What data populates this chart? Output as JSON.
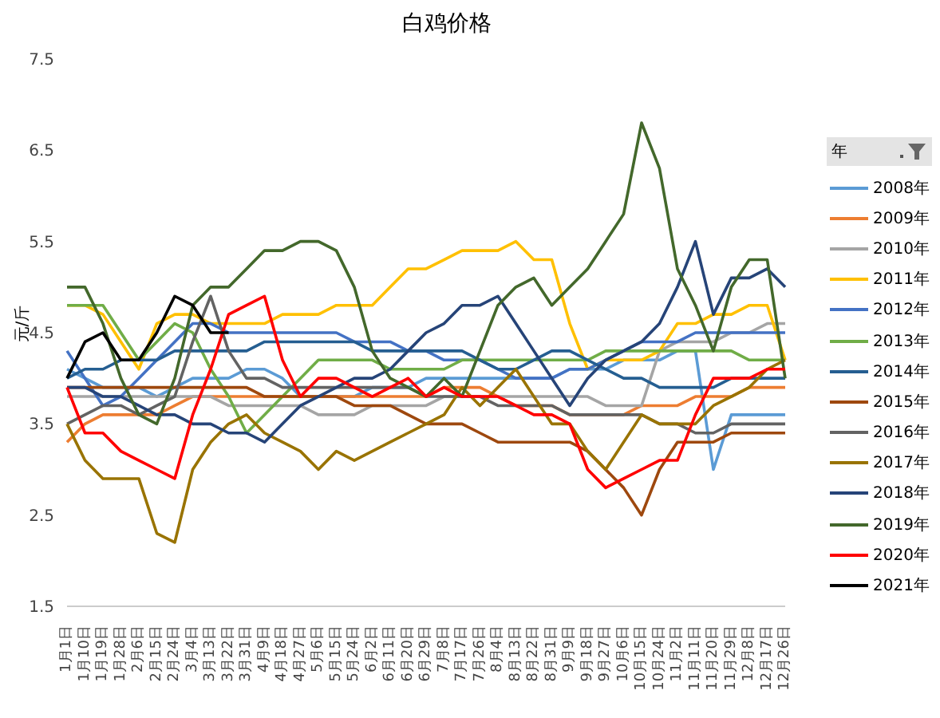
{
  "chart_data": {
    "type": "line",
    "title": "白鸡价格",
    "ylabel": "元/斤",
    "legend_title": "年",
    "legend": "right",
    "grid": false,
    "marker": "none",
    "line_style": "solid",
    "categories": [
      "1月1日",
      "1月10日",
      "1月19日",
      "1月28日",
      "2月6日",
      "2月15日",
      "2月24日",
      "3月4日",
      "3月13日",
      "3月22日",
      "3月31日",
      "4月9日",
      "4月18日",
      "4月27日",
      "5月6日",
      "5月15日",
      "5月24日",
      "6月2日",
      "6月11日",
      "6月20日",
      "6月29日",
      "7月8日",
      "7月17日",
      "7月26日",
      "8月4日",
      "8月13日",
      "8月22日",
      "8月31日",
      "9月9日",
      "9月18日",
      "9月27日",
      "10月6日",
      "10月15日",
      "10月24日",
      "11月2日",
      "11月11日",
      "11月20日",
      "11月29日",
      "12月8日",
      "12月17日",
      "12月26日"
    ],
    "ylim": [
      1.5,
      7.5
    ],
    "yticks": [
      1.5,
      2.5,
      3.5,
      4.5,
      5.5,
      6.5,
      7.5
    ],
    "series": [
      {
        "name": "2008年",
        "color": "#5b9bd5",
        "values": [
          4.1,
          4.0,
          3.9,
          3.9,
          3.9,
          3.8,
          3.9,
          4.0,
          4.0,
          4.0,
          4.1,
          4.1,
          4.0,
          3.8,
          3.8,
          3.8,
          3.8,
          3.9,
          3.9,
          3.9,
          4.0,
          4.0,
          4.0,
          4.0,
          4.0,
          4.0,
          4.0,
          4.0,
          4.1,
          4.1,
          4.1,
          4.2,
          4.2,
          4.2,
          4.3,
          4.3,
          3.0,
          3.6,
          3.6,
          3.6,
          3.6
        ]
      },
      {
        "name": "2009年",
        "color": "#ed7d31",
        "values": [
          3.3,
          3.5,
          3.6,
          3.6,
          3.6,
          3.6,
          3.7,
          3.8,
          3.8,
          3.8,
          3.8,
          3.8,
          3.8,
          3.8,
          3.8,
          3.8,
          3.8,
          3.8,
          3.8,
          3.8,
          3.8,
          3.9,
          3.9,
          3.9,
          3.8,
          3.7,
          3.7,
          3.7,
          3.6,
          3.6,
          3.6,
          3.6,
          3.7,
          3.7,
          3.7,
          3.8,
          3.8,
          3.8,
          3.9,
          3.9,
          3.9
        ]
      },
      {
        "name": "2010年",
        "color": "#a5a5a5",
        "values": [
          3.8,
          3.8,
          3.8,
          3.8,
          3.8,
          3.8,
          3.8,
          3.8,
          3.8,
          3.7,
          3.7,
          3.7,
          3.7,
          3.7,
          3.6,
          3.6,
          3.6,
          3.7,
          3.7,
          3.7,
          3.7,
          3.8,
          3.8,
          3.8,
          3.8,
          3.8,
          3.8,
          3.8,
          3.8,
          3.8,
          3.7,
          3.7,
          3.7,
          4.3,
          4.4,
          4.4,
          4.4,
          4.5,
          4.5,
          4.6,
          4.6
        ]
      },
      {
        "name": "2011年",
        "color": "#ffc000",
        "values": [
          4.8,
          4.8,
          4.7,
          4.4,
          4.1,
          4.6,
          4.7,
          4.7,
          4.6,
          4.6,
          4.6,
          4.6,
          4.7,
          4.7,
          4.7,
          4.8,
          4.8,
          4.8,
          5.0,
          5.2,
          5.2,
          5.3,
          5.4,
          5.4,
          5.4,
          5.5,
          5.3,
          5.3,
          4.6,
          4.1,
          4.2,
          4.2,
          4.2,
          4.3,
          4.6,
          4.6,
          4.7,
          4.7,
          4.8,
          4.8,
          4.2
        ]
      },
      {
        "name": "2012年",
        "color": "#4472c4",
        "values": [
          4.3,
          4.0,
          3.7,
          3.8,
          4.0,
          4.2,
          4.4,
          4.6,
          4.6,
          4.5,
          4.5,
          4.5,
          4.5,
          4.5,
          4.5,
          4.5,
          4.4,
          4.4,
          4.4,
          4.3,
          4.3,
          4.2,
          4.2,
          4.2,
          4.1,
          4.0,
          4.0,
          4.0,
          4.1,
          4.1,
          4.2,
          4.3,
          4.4,
          4.4,
          4.4,
          4.5,
          4.5,
          4.5,
          4.5,
          4.5,
          4.5
        ]
      },
      {
        "name": "2013年",
        "color": "#70ad47",
        "values": [
          4.8,
          4.8,
          4.8,
          4.5,
          4.2,
          4.4,
          4.6,
          4.5,
          4.1,
          3.8,
          3.4,
          3.6,
          3.8,
          4.0,
          4.2,
          4.2,
          4.2,
          4.2,
          4.1,
          4.1,
          4.1,
          4.1,
          4.2,
          4.2,
          4.2,
          4.2,
          4.2,
          4.2,
          4.2,
          4.2,
          4.3,
          4.3,
          4.3,
          4.3,
          4.3,
          4.3,
          4.3,
          4.3,
          4.2,
          4.2,
          4.2
        ]
      },
      {
        "name": "2014年",
        "color": "#255e91",
        "values": [
          4.0,
          4.1,
          4.1,
          4.2,
          4.2,
          4.2,
          4.3,
          4.3,
          4.3,
          4.3,
          4.3,
          4.4,
          4.4,
          4.4,
          4.4,
          4.4,
          4.4,
          4.3,
          4.3,
          4.3,
          4.3,
          4.3,
          4.3,
          4.2,
          4.1,
          4.1,
          4.2,
          4.3,
          4.3,
          4.2,
          4.1,
          4.0,
          4.0,
          3.9,
          3.9,
          3.9,
          3.9,
          4.0,
          4.0,
          4.0,
          4.0
        ]
      },
      {
        "name": "2015年",
        "color": "#9e480e",
        "values": [
          3.9,
          3.9,
          3.9,
          3.9,
          3.9,
          3.9,
          3.9,
          3.9,
          3.9,
          3.9,
          3.9,
          3.8,
          3.8,
          3.8,
          3.8,
          3.8,
          3.7,
          3.7,
          3.7,
          3.6,
          3.5,
          3.5,
          3.5,
          3.4,
          3.3,
          3.3,
          3.3,
          3.3,
          3.3,
          3.2,
          3.0,
          2.8,
          2.5,
          3.0,
          3.3,
          3.3,
          3.3,
          3.4,
          3.4,
          3.4,
          3.4
        ]
      },
      {
        "name": "2016年",
        "color": "#636363",
        "values": [
          3.5,
          3.6,
          3.7,
          3.7,
          3.6,
          3.7,
          3.8,
          4.4,
          4.9,
          4.3,
          4.0,
          4.0,
          3.9,
          3.9,
          3.9,
          3.9,
          3.9,
          3.9,
          3.9,
          3.9,
          3.8,
          3.8,
          3.8,
          3.8,
          3.7,
          3.7,
          3.7,
          3.7,
          3.6,
          3.6,
          3.6,
          3.6,
          3.6,
          3.5,
          3.5,
          3.4,
          3.4,
          3.5,
          3.5,
          3.5,
          3.5
        ]
      },
      {
        "name": "2017年",
        "color": "#997300",
        "values": [
          3.5,
          3.1,
          2.9,
          2.9,
          2.9,
          2.3,
          2.2,
          3.0,
          3.3,
          3.5,
          3.6,
          3.4,
          3.3,
          3.2,
          3.0,
          3.2,
          3.1,
          3.2,
          3.3,
          3.4,
          3.5,
          3.6,
          3.9,
          3.7,
          3.9,
          4.1,
          3.8,
          3.5,
          3.5,
          3.2,
          3.0,
          3.3,
          3.6,
          3.5,
          3.5,
          3.5,
          3.7,
          3.8,
          3.9,
          4.1,
          4.2
        ]
      },
      {
        "name": "2018年",
        "color": "#264478",
        "values": [
          3.9,
          3.9,
          3.8,
          3.8,
          3.7,
          3.6,
          3.6,
          3.5,
          3.5,
          3.4,
          3.4,
          3.3,
          3.5,
          3.7,
          3.8,
          3.9,
          4.0,
          4.0,
          4.1,
          4.3,
          4.5,
          4.6,
          4.8,
          4.8,
          4.9,
          4.6,
          4.3,
          4.0,
          3.7,
          4.0,
          4.2,
          4.3,
          4.4,
          4.6,
          5.0,
          5.5,
          4.7,
          5.1,
          5.1,
          5.2,
          5.0
        ]
      },
      {
        "name": "2019年",
        "color": "#43682b",
        "values": [
          5.0,
          5.0,
          4.6,
          4.0,
          3.6,
          3.5,
          4.0,
          4.8,
          5.0,
          5.0,
          5.2,
          5.4,
          5.4,
          5.5,
          5.5,
          5.4,
          5.0,
          4.3,
          4.0,
          3.9,
          3.8,
          4.0,
          3.8,
          4.3,
          4.8,
          5.0,
          5.1,
          4.8,
          5.0,
          5.2,
          5.5,
          5.8,
          6.8,
          6.3,
          5.2,
          4.8,
          4.3,
          5.0,
          5.3,
          5.3,
          4.0
        ]
      },
      {
        "name": "2020年",
        "color": "#ff0000",
        "values": [
          3.9,
          3.4,
          3.4,
          3.2,
          3.1,
          3.0,
          2.9,
          3.6,
          4.1,
          4.7,
          4.8,
          4.9,
          4.2,
          3.8,
          4.0,
          4.0,
          3.9,
          3.8,
          3.9,
          4.0,
          3.8,
          3.9,
          3.8,
          3.8,
          3.8,
          3.7,
          3.6,
          3.6,
          3.5,
          3.0,
          2.8,
          2.9,
          3.0,
          3.1,
          3.1,
          3.6,
          4.0,
          4.0,
          4.0,
          4.1,
          4.1
        ]
      },
      {
        "name": "2021年",
        "color": "#000000",
        "values": [
          4.0,
          4.4,
          4.5,
          4.2,
          4.2,
          4.5,
          4.9,
          4.8,
          4.5,
          4.5,
          null,
          null,
          null,
          null,
          null,
          null,
          null,
          null,
          null,
          null,
          null,
          null,
          null,
          null,
          null,
          null,
          null,
          null,
          null,
          null,
          null,
          null,
          null,
          null,
          null,
          null,
          null,
          null,
          null,
          null,
          null
        ]
      }
    ]
  }
}
